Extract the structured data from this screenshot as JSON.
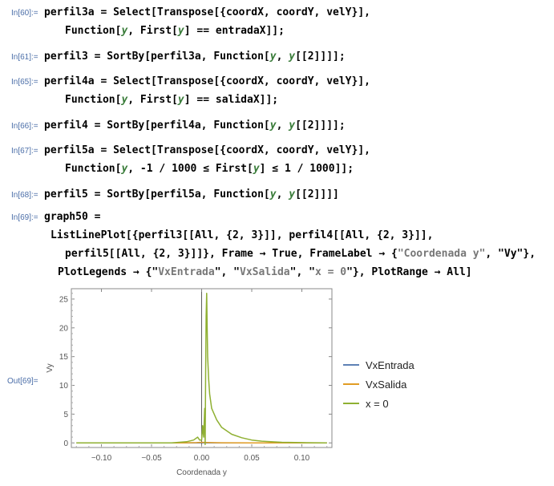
{
  "cells": [
    {
      "label": "In[60]:=",
      "top": 8,
      "lines": [
        {
          "left": 55,
          "segs": [
            [
              "perfil3a = Select[Transpose[{coordX, coordY, velY}],",
              ""
            ]
          ]
        },
        {
          "left": 81,
          "segs": [
            [
              "Function[",
              ""
            ],
            [
              "y",
              "var"
            ],
            [
              ", First[",
              ""
            ],
            [
              "y",
              "var"
            ],
            [
              "] == entradaX]];",
              ""
            ]
          ]
        }
      ]
    },
    {
      "label": "In[61]:=",
      "top": 63,
      "lines": [
        {
          "left": 55,
          "segs": [
            [
              "perfil3 = SortBy[perfil3a, Function[",
              ""
            ],
            [
              "y",
              "var"
            ],
            [
              ", ",
              ""
            ],
            [
              "y",
              "var"
            ],
            [
              "[[2]]]];",
              ""
            ]
          ]
        }
      ]
    },
    {
      "label": "In[65]:=",
      "top": 94,
      "lines": [
        {
          "left": 55,
          "segs": [
            [
              "perfil4a = Select[Transpose[{coordX, coordY, velY}],",
              ""
            ]
          ]
        },
        {
          "left": 81,
          "segs": [
            [
              "Function[",
              ""
            ],
            [
              "y",
              "var"
            ],
            [
              ", First[",
              ""
            ],
            [
              "y",
              "var"
            ],
            [
              "] == salidaX]];",
              ""
            ]
          ]
        }
      ]
    },
    {
      "label": "In[66]:=",
      "top": 149,
      "lines": [
        {
          "left": 55,
          "segs": [
            [
              "perfil4 = SortBy[perfil4a, Function[",
              ""
            ],
            [
              "y",
              "var"
            ],
            [
              ", ",
              ""
            ],
            [
              "y",
              "var"
            ],
            [
              "[[2]]]];",
              ""
            ]
          ]
        }
      ]
    },
    {
      "label": "In[67]:=",
      "top": 180,
      "lines": [
        {
          "left": 55,
          "segs": [
            [
              "perfil5a = Select[Transpose[{coordX, coordY, velY}],",
              ""
            ]
          ]
        },
        {
          "left": 81,
          "segs": [
            [
              "Function[",
              ""
            ],
            [
              "y",
              "var"
            ],
            [
              ", -1 / 1000 ≤ First[",
              ""
            ],
            [
              "y",
              "var"
            ],
            [
              "] ≤ 1 / 1000]];",
              ""
            ]
          ]
        }
      ]
    },
    {
      "label": "In[68]:=",
      "top": 235,
      "lines": [
        {
          "left": 55,
          "segs": [
            [
              "perfil5 = SortBy[perfil5a, Function[",
              ""
            ],
            [
              "y",
              "var"
            ],
            [
              ", ",
              ""
            ],
            [
              "y",
              "var"
            ],
            [
              "[[2]]]]",
              ""
            ]
          ]
        }
      ]
    },
    {
      "label": "In[69]:=",
      "top": 263,
      "lines": [
        {
          "left": 55,
          "segs": [
            [
              "graph50 =",
              ""
            ]
          ]
        },
        {
          "left": 63,
          "segs": [
            [
              "ListLinePlot[{perfil3[[All, {2, 3}]], perfil4[[All, {2, 3}]],",
              ""
            ]
          ]
        },
        {
          "left": 81,
          "segs": [
            [
              "perfil5[[All, {2, 3}]]}, Frame → True, FrameLabel → {",
              ""
            ],
            [
              "\"Coordenada y\"",
              "str"
            ],
            [
              ", \"Vy\"},",
              ""
            ]
          ]
        },
        {
          "left": 72,
          "segs": [
            [
              "PlotLegends → {\"",
              ""
            ],
            [
              "VxEntrada",
              "str"
            ],
            [
              "\", \"",
              ""
            ],
            [
              "VxSalida",
              "str"
            ],
            [
              "\", \"",
              ""
            ],
            [
              "x = 0",
              "str"
            ],
            [
              "\"}, PlotRange → All]",
              ""
            ]
          ]
        }
      ]
    }
  ],
  "output_label": "Out[69]=",
  "chart_data": {
    "type": "line",
    "xlabel": "Coordenada y",
    "ylabel": "Vy",
    "xlim": [
      -0.13,
      0.13
    ],
    "ylim": [
      -0.8,
      26.8
    ],
    "xticks": [
      -0.1,
      -0.05,
      0.0,
      0.05,
      0.1
    ],
    "xtick_labels": [
      "−0.10",
      "−0.05",
      "0.00",
      "0.05",
      "0.10"
    ],
    "yticks": [
      0,
      5,
      10,
      15,
      20,
      25
    ],
    "ytick_labels": [
      "0",
      "5",
      "10",
      "15",
      "20",
      "25"
    ],
    "legend_position": "right",
    "series": [
      {
        "name": "VxEntrada",
        "color": "#5e81b5",
        "x": [
          -0.125,
          -0.05,
          -0.01,
          0.0,
          0.01,
          0.05,
          0.125
        ],
        "y": [
          0,
          0,
          0,
          0,
          0,
          0,
          0
        ]
      },
      {
        "name": "VxSalida",
        "color": "#e19c24",
        "x": [
          -0.125,
          -0.05,
          -0.02,
          -0.005,
          0.0,
          0.005,
          0.02,
          0.05,
          0.125
        ],
        "y": [
          0,
          0,
          0,
          0.05,
          0.1,
          0.08,
          0.02,
          0,
          0
        ]
      },
      {
        "name": "x = 0",
        "color": "#8fb032",
        "x": [
          -0.125,
          -0.03,
          -0.015,
          -0.008,
          -0.004,
          -0.002,
          0.0,
          0.001,
          0.002,
          0.003,
          0.0035,
          0.004,
          0.0045,
          0.005,
          0.0055,
          0.006,
          0.007,
          0.008,
          0.01,
          0.015,
          0.02,
          0.03,
          0.04,
          0.05,
          0.06,
          0.08,
          0.1,
          0.125
        ],
        "y": [
          0,
          0,
          0.2,
          0.5,
          1.0,
          0.5,
          0.5,
          3.0,
          1.0,
          6.0,
          -0.3,
          12.0,
          22.0,
          26.0,
          20.0,
          15.0,
          11.0,
          8.5,
          6.0,
          4.0,
          2.7,
          1.5,
          0.9,
          0.5,
          0.3,
          0.1,
          0.05,
          0
        ]
      }
    ]
  }
}
